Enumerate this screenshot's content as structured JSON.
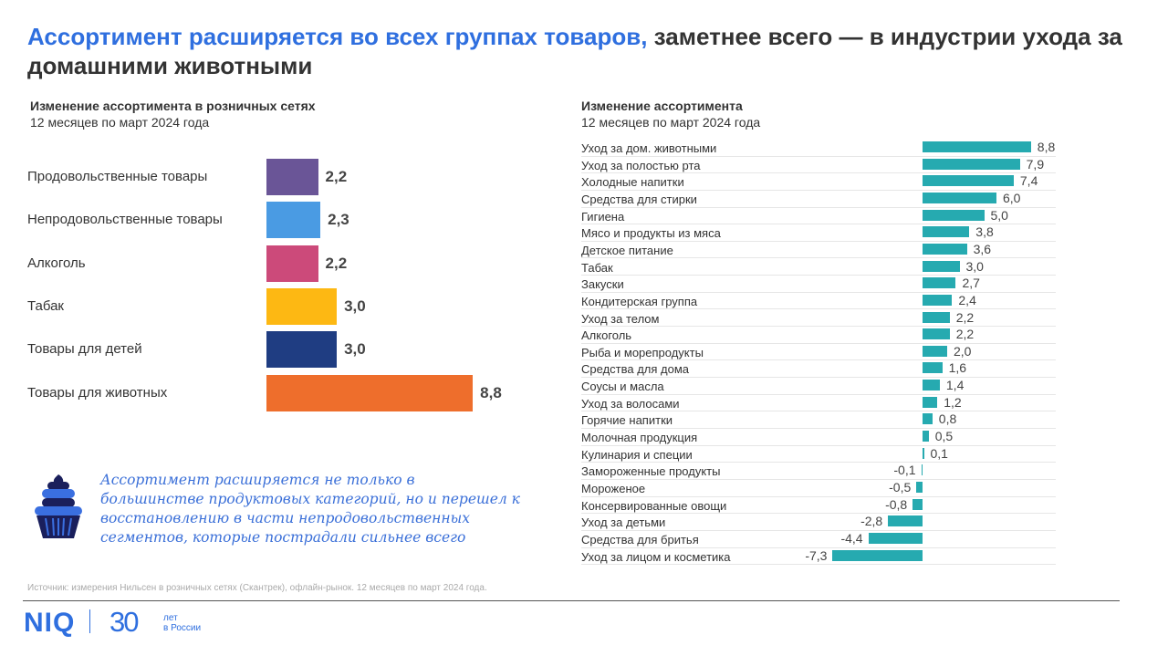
{
  "title": {
    "highlight": "Ассортимент расширяется во всех группах товаров,",
    "rest": " заметнее всего —  в индустрии ухода за домашними животными"
  },
  "chart_data": [
    {
      "type": "bar",
      "orientation": "horizontal",
      "title": "Изменение ассортимента в розничных сетях",
      "subtitle": "12 месяцев по март 2024 года",
      "categories": [
        "Продовольственные товары",
        "Непродовольственные товары",
        "Алкоголь",
        "Табак",
        "Товары для детей",
        "Товары для животных"
      ],
      "values": [
        2.2,
        2.3,
        2.2,
        3.0,
        3.0,
        8.8
      ],
      "labels": [
        "2,2",
        "2,3",
        "2,2",
        "3,0",
        "3,0",
        "8,8"
      ],
      "colors": [
        "#6a5597",
        "#4a9be3",
        "#cc4a7a",
        "#fdb813",
        "#1f3d82",
        "#ee6e2c"
      ]
    },
    {
      "type": "bar",
      "orientation": "horizontal",
      "title": "Изменение ассортимента",
      "subtitle": "12 месяцев по март 2024 года",
      "color": "#26aab0",
      "categories": [
        "Уход за дом. животными",
        "Уход за полостью рта",
        "Холодные напитки",
        "Средства для стирки",
        "Гигиена",
        "Мясо и продукты из мяса",
        "Детское питание",
        "Табак",
        "Закуски",
        "Кондитерская группа",
        "Уход за телом",
        "Алкоголь",
        "Рыба и морепродукты",
        "Средства для дома",
        "Соусы и масла",
        "Уход за волосами",
        "Горячие напитки",
        "Молочная продукция",
        "Кулинария и специи",
        "Замороженные продукты",
        "Мороженое",
        "Консервированные овощи",
        "Уход за детьми",
        "Средства для бритья",
        "Уход за лицом и косметика"
      ],
      "values": [
        8.8,
        7.9,
        7.4,
        6.0,
        5.0,
        3.8,
        3.6,
        3.0,
        2.7,
        2.4,
        2.2,
        2.2,
        2.0,
        1.6,
        1.4,
        1.2,
        0.8,
        0.5,
        0.1,
        -0.1,
        -0.5,
        -0.8,
        -2.8,
        -4.4,
        -7.3
      ],
      "labels": [
        "8,8",
        "7,9",
        "7,4",
        "6,0",
        "5,0",
        "3,8",
        "3,6",
        "3,0",
        "2,7",
        "2,4",
        "2,2",
        "2,2",
        "2,0",
        "1,6",
        "1,4",
        "1,2",
        "0,8",
        "0,5",
        "0,1",
        "-0,1",
        "-0,5",
        "-0,8",
        "-2,8",
        "-4,4",
        "-7,3"
      ]
    }
  ],
  "note": "Ассортимент расширяется не только в большинстве продуктовых категорий, но и перешел к восстановлению в части непродовольственных сегментов, которые пострадали сильнее всего",
  "source": "Источник: измерения Нильсен в розничных сетях (Скантрек), офлайн-рынок. 12 месяцев по март 2024 года.",
  "logo": {
    "brand": "NIQ",
    "number": "30",
    "years": "лет",
    "country": "в России"
  }
}
